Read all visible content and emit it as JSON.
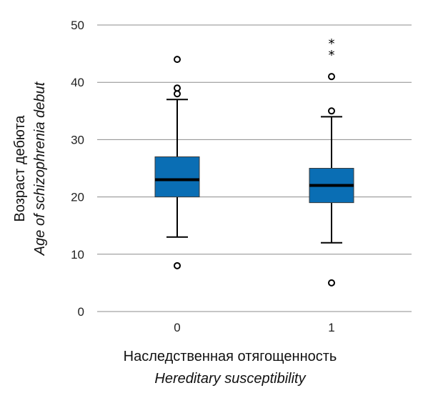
{
  "chart_data": {
    "type": "boxplot",
    "xlabel": "Наследственная отягощенность",
    "xlabel_en": "Hereditary susceptibility",
    "ylabel": "Возраст дебюта",
    "ylabel_en": "Age of schizophrenia debut",
    "ylim": [
      0,
      50
    ],
    "yticks": [
      "0",
      "10",
      "20",
      "30",
      "40",
      "50"
    ],
    "categories": [
      "0",
      "1"
    ],
    "grid": "horizontal",
    "box_color": "#0a6eb4",
    "boxes": [
      {
        "category": "0",
        "whisker_low": 13,
        "q1": 20,
        "median": 23,
        "q3": 27,
        "whisker_high": 37,
        "outliers": [
          8,
          38,
          39,
          44
        ],
        "extremes": []
      },
      {
        "category": "1",
        "whisker_low": 12,
        "q1": 19,
        "median": 22,
        "q3": 25,
        "whisker_high": 34,
        "outliers": [
          5,
          35,
          41
        ],
        "extremes": [
          45,
          47
        ]
      }
    ]
  }
}
